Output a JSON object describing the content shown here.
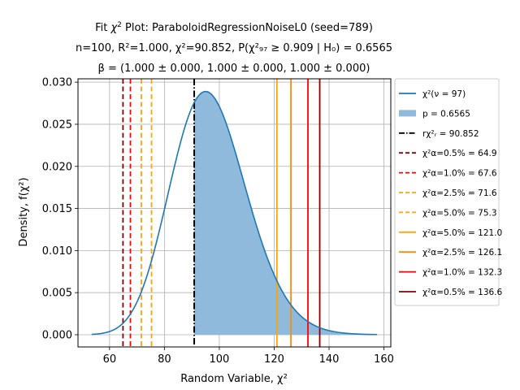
{
  "chart_data": {
    "type": "line",
    "title": {
      "line1_prefix": "Fit ",
      "line1_chi": "χ",
      "line1_sup": "2",
      "line1_suffix": " Plot: ParaboloidRegressionNoiseL0 (seed=789)",
      "line2": "n=100, R²=1.000, χ²=90.852, P(χ²₉₇ ≥ 0.909 | H₀) = 0.6565",
      "line3": "β = (1.000 ± 0.000, 1.000 ± 0.000, 1.000 ± 0.000)"
    },
    "xlabel": "Random Variable, χ²",
    "ylabel": "Density, f(χ²)",
    "xlim": [
      48.5,
      162.5
    ],
    "ylim": [
      -0.00145,
      0.0304
    ],
    "xticks": [
      60,
      80,
      100,
      120,
      140,
      160
    ],
    "yticks": [
      0.0,
      0.005,
      0.01,
      0.015,
      0.02,
      0.025,
      0.03
    ],
    "ytick_labels": [
      "0.000",
      "0.005",
      "0.010",
      "0.015",
      "0.020",
      "0.025",
      "0.030"
    ],
    "grid": true,
    "legend_position": "outside-right",
    "dof": 97,
    "curve_range": [
      53.5,
      157.5
    ],
    "shade_from": 90.852,
    "statistic": 90.852,
    "critical_lines": [
      {
        "x": 64.9,
        "style": "dashed",
        "color": "#8b0000"
      },
      {
        "x": 67.6,
        "style": "dashed",
        "color": "#ff0000"
      },
      {
        "x": 71.6,
        "style": "dashed",
        "color": "#ffa500"
      },
      {
        "x": 75.3,
        "style": "dashed",
        "color": "#ffa500"
      },
      {
        "x": 121.0,
        "style": "solid",
        "color": "#ffa500"
      },
      {
        "x": 126.1,
        "style": "solid",
        "color": "#ff8c00"
      },
      {
        "x": 132.3,
        "style": "solid",
        "color": "#ff0000"
      },
      {
        "x": 136.6,
        "style": "solid",
        "color": "#8b0000"
      }
    ],
    "colors": {
      "curve": "#1f77b4",
      "fill": "#8fbadb",
      "stat": "#000000"
    },
    "legend": [
      {
        "kind": "line",
        "color": "#1f77b4",
        "dash": "",
        "label": "χ²(ν = 97)"
      },
      {
        "kind": "patch",
        "color": "#8fbadb",
        "label": "p = 0.6565"
      },
      {
        "kind": "line",
        "color": "#000000",
        "dash": "7,2,1.5,2",
        "label": "rχ²ᵣ = 90.852"
      },
      {
        "kind": "line",
        "color": "#8b0000",
        "dash": "5,3",
        "label": "χ²α=0.5% = 64.9"
      },
      {
        "kind": "line",
        "color": "#ff0000",
        "dash": "5,3",
        "label": "χ²α=1.0% = 67.6"
      },
      {
        "kind": "line",
        "color": "#ffa500",
        "dash": "5,3",
        "label": "χ²α=2.5% = 71.6"
      },
      {
        "kind": "line",
        "color": "#ffa500",
        "dash": "5,3",
        "label": "χ²α=5.0% = 75.3"
      },
      {
        "kind": "line",
        "color": "#ffa500",
        "dash": "",
        "label": "χ²α=5.0% = 121.0"
      },
      {
        "kind": "line",
        "color": "#ff8c00",
        "dash": "",
        "label": "χ²α=2.5% = 126.1"
      },
      {
        "kind": "line",
        "color": "#ff0000",
        "dash": "",
        "label": "χ²α=1.0% = 132.3"
      },
      {
        "kind": "line",
        "color": "#8b0000",
        "dash": "",
        "label": "χ²α=0.5% = 136.6"
      }
    ]
  }
}
